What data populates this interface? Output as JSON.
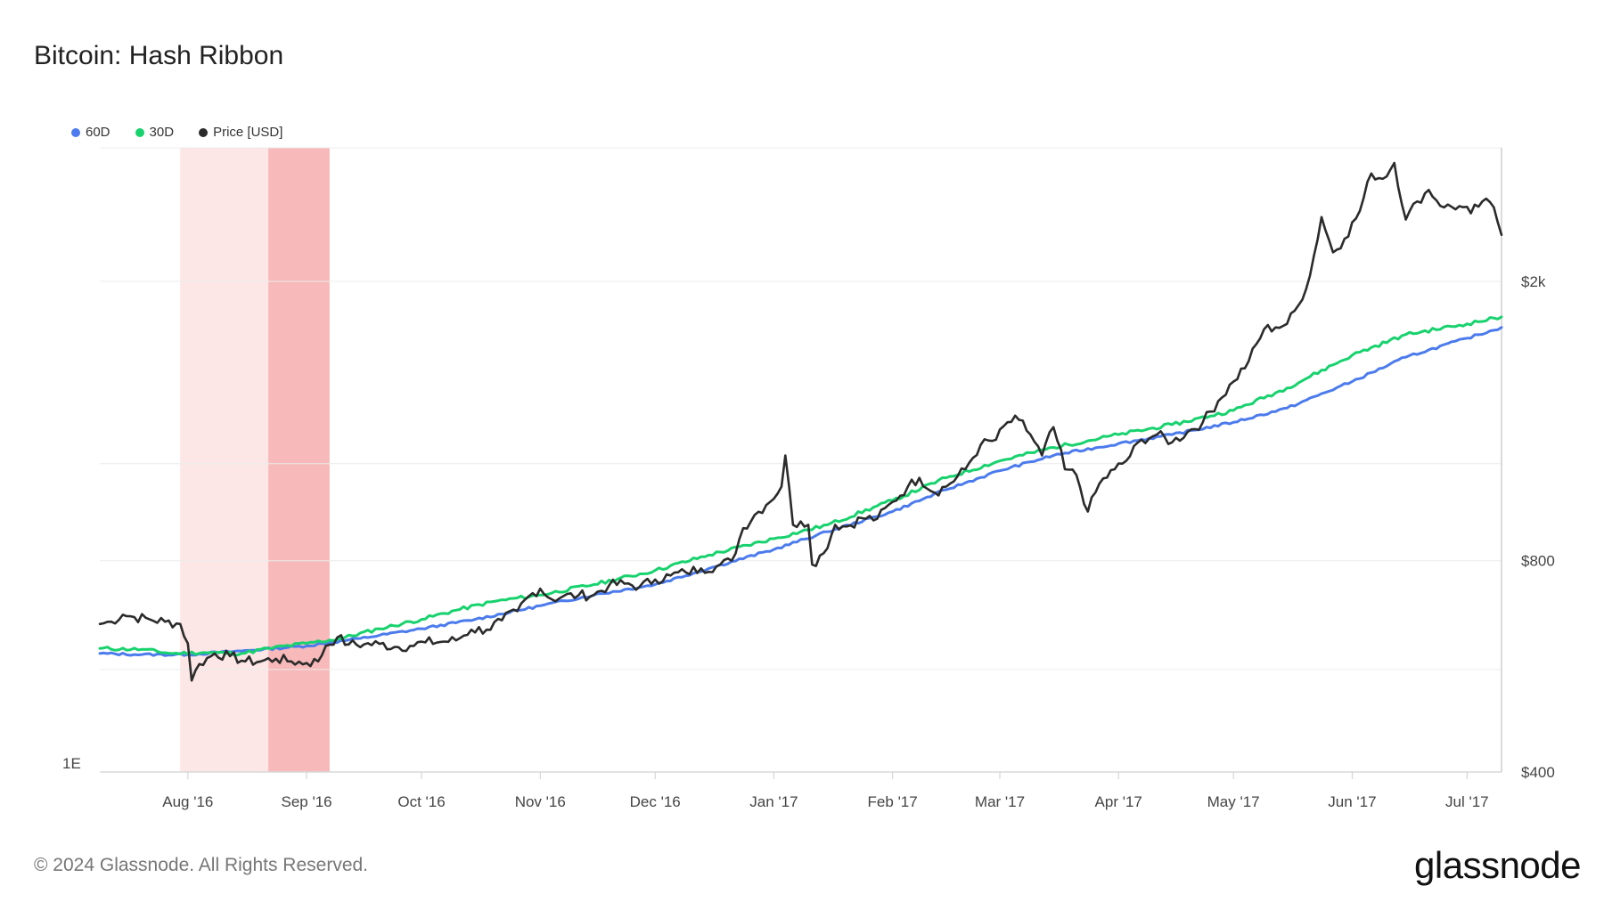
{
  "title": "Bitcoin: Hash Ribbon",
  "legend": [
    {
      "label": "60D",
      "color": "#4b7bec"
    },
    {
      "label": "30D",
      "color": "#18d26e"
    },
    {
      "label": "Price [USD]",
      "color": "#2b2b2b"
    }
  ],
  "footer": "© 2024 Glassnode. All Rights Reserved.",
  "brand": "glassnode",
  "chart_data": {
    "type": "line",
    "title": "Bitcoin: Hash Ribbon",
    "left_axis_label": "1E",
    "x_ticks": [
      "Aug '16",
      "Sep '16",
      "Oct '16",
      "Nov '16",
      "Dec '16",
      "Jan '17",
      "Feb '17",
      "Mar '17",
      "Apr '17",
      "May '17",
      "Jun '17",
      "Jul '17"
    ],
    "x_tick_dates": [
      "2016-08-01",
      "2016-09-01",
      "2016-10-01",
      "2016-11-01",
      "2016-12-01",
      "2017-01-01",
      "2017-02-01",
      "2017-03-01",
      "2017-04-01",
      "2017-05-01",
      "2017-06-01",
      "2017-07-01"
    ],
    "x_range": [
      "2016-07-09",
      "2017-07-10"
    ],
    "price_axis": {
      "scale": "log",
      "ticks": [
        400,
        800,
        2000
      ],
      "tick_labels": [
        "$400",
        "$800",
        "$2k"
      ],
      "range": [
        400,
        3100
      ]
    },
    "bands": [
      {
        "start": "2016-07-30",
        "end": "2016-08-22",
        "color": "#fde6e6"
      },
      {
        "start": "2016-08-22",
        "end": "2016-09-07",
        "color": "#f7b9b9"
      }
    ],
    "series": [
      {
        "name": "Price [USD]",
        "color": "#2b2b2b",
        "points": [
          [
            "2016-07-09",
            650
          ],
          [
            "2016-07-12",
            655
          ],
          [
            "2016-07-15",
            670
          ],
          [
            "2016-07-18",
            665
          ],
          [
            "2016-07-22",
            660
          ],
          [
            "2016-07-26",
            655
          ],
          [
            "2016-07-30",
            650
          ],
          [
            "2016-08-01",
            610
          ],
          [
            "2016-08-02",
            540
          ],
          [
            "2016-08-04",
            570
          ],
          [
            "2016-08-08",
            590
          ],
          [
            "2016-08-12",
            585
          ],
          [
            "2016-08-16",
            575
          ],
          [
            "2016-08-20",
            575
          ],
          [
            "2016-08-24",
            580
          ],
          [
            "2016-08-28",
            575
          ],
          [
            "2016-09-01",
            572
          ],
          [
            "2016-09-04",
            575
          ],
          [
            "2016-09-06",
            605
          ],
          [
            "2016-09-09",
            622
          ],
          [
            "2016-09-12",
            608
          ],
          [
            "2016-09-16",
            608
          ],
          [
            "2016-09-20",
            609
          ],
          [
            "2016-09-24",
            603
          ],
          [
            "2016-09-28",
            605
          ],
          [
            "2016-10-02",
            612
          ],
          [
            "2016-10-06",
            613
          ],
          [
            "2016-10-10",
            616
          ],
          [
            "2016-10-14",
            638
          ],
          [
            "2016-10-18",
            638
          ],
          [
            "2016-10-22",
            658
          ],
          [
            "2016-10-26",
            678
          ],
          [
            "2016-10-29",
            712
          ],
          [
            "2016-11-01",
            730
          ],
          [
            "2016-11-04",
            705
          ],
          [
            "2016-11-07",
            712
          ],
          [
            "2016-11-11",
            714
          ],
          [
            "2016-11-15",
            715
          ],
          [
            "2016-11-19",
            738
          ],
          [
            "2016-11-23",
            742
          ],
          [
            "2016-11-27",
            735
          ],
          [
            "2016-12-01",
            752
          ],
          [
            "2016-12-05",
            762
          ],
          [
            "2016-12-09",
            770
          ],
          [
            "2016-12-13",
            780
          ],
          [
            "2016-12-17",
            785
          ],
          [
            "2016-12-21",
            800
          ],
          [
            "2016-12-24",
            890
          ],
          [
            "2016-12-27",
            930
          ],
          [
            "2016-12-30",
            960
          ],
          [
            "2017-01-03",
            1020
          ],
          [
            "2017-01-04",
            1130
          ],
          [
            "2017-01-06",
            900
          ],
          [
            "2017-01-08",
            910
          ],
          [
            "2017-01-10",
            900
          ],
          [
            "2017-01-11",
            790
          ],
          [
            "2017-01-14",
            820
          ],
          [
            "2017-01-17",
            900
          ],
          [
            "2017-01-20",
            895
          ],
          [
            "2017-01-24",
            920
          ],
          [
            "2017-01-28",
            918
          ],
          [
            "2017-02-01",
            970
          ],
          [
            "2017-02-05",
            1020
          ],
          [
            "2017-02-08",
            1050
          ],
          [
            "2017-02-12",
            1000
          ],
          [
            "2017-02-16",
            1030
          ],
          [
            "2017-02-20",
            1080
          ],
          [
            "2017-02-24",
            1170
          ],
          [
            "2017-02-28",
            1190
          ],
          [
            "2017-03-03",
            1260
          ],
          [
            "2017-03-06",
            1270
          ],
          [
            "2017-03-09",
            1210
          ],
          [
            "2017-03-12",
            1130
          ],
          [
            "2017-03-15",
            1240
          ],
          [
            "2017-03-18",
            1080
          ],
          [
            "2017-03-21",
            1060
          ],
          [
            "2017-03-24",
            940
          ],
          [
            "2017-03-27",
            1030
          ],
          [
            "2017-03-31",
            1080
          ],
          [
            "2017-04-03",
            1110
          ],
          [
            "2017-04-07",
            1190
          ],
          [
            "2017-04-11",
            1210
          ],
          [
            "2017-04-15",
            1180
          ],
          [
            "2017-04-19",
            1220
          ],
          [
            "2017-04-23",
            1260
          ],
          [
            "2017-04-27",
            1350
          ],
          [
            "2017-05-01",
            1440
          ],
          [
            "2017-05-05",
            1540
          ],
          [
            "2017-05-09",
            1710
          ],
          [
            "2017-05-12",
            1720
          ],
          [
            "2017-05-15",
            1740
          ],
          [
            "2017-05-18",
            1850
          ],
          [
            "2017-05-21",
            2040
          ],
          [
            "2017-05-24",
            2470
          ],
          [
            "2017-05-27",
            2200
          ],
          [
            "2017-05-30",
            2300
          ],
          [
            "2017-06-03",
            2520
          ],
          [
            "2017-06-06",
            2850
          ],
          [
            "2017-06-09",
            2800
          ],
          [
            "2017-06-12",
            2950
          ],
          [
            "2017-06-15",
            2450
          ],
          [
            "2017-06-18",
            2600
          ],
          [
            "2017-06-21",
            2700
          ],
          [
            "2017-06-25",
            2550
          ],
          [
            "2017-06-29",
            2560
          ],
          [
            "2017-07-02",
            2500
          ],
          [
            "2017-07-05",
            2600
          ],
          [
            "2017-07-08",
            2550
          ],
          [
            "2017-07-10",
            2330
          ]
        ]
      },
      {
        "name": "30D",
        "color": "#18d26e",
        "points": [
          [
            "2016-07-09",
            600
          ],
          [
            "2016-07-20",
            598
          ],
          [
            "2016-07-28",
            590
          ],
          [
            "2016-08-05",
            592
          ],
          [
            "2016-08-15",
            590
          ],
          [
            "2016-08-22",
            600
          ],
          [
            "2016-09-01",
            610
          ],
          [
            "2016-09-10",
            620
          ],
          [
            "2016-09-20",
            640
          ],
          [
            "2016-10-01",
            660
          ],
          [
            "2016-10-10",
            680
          ],
          [
            "2016-10-20",
            700
          ],
          [
            "2016-11-01",
            715
          ],
          [
            "2016-11-15",
            740
          ],
          [
            "2016-12-01",
            775
          ],
          [
            "2016-12-15",
            815
          ],
          [
            "2017-01-01",
            860
          ],
          [
            "2017-01-15",
            900
          ],
          [
            "2017-02-01",
            975
          ],
          [
            "2017-02-15",
            1050
          ],
          [
            "2017-03-01",
            1110
          ],
          [
            "2017-03-15",
            1160
          ],
          [
            "2017-04-01",
            1210
          ],
          [
            "2017-04-15",
            1250
          ],
          [
            "2017-05-01",
            1310
          ],
          [
            "2017-05-15",
            1410
          ],
          [
            "2017-06-01",
            1570
          ],
          [
            "2017-06-15",
            1680
          ],
          [
            "2017-07-01",
            1740
          ],
          [
            "2017-07-10",
            1780
          ]
        ]
      },
      {
        "name": "60D",
        "color": "#4b7bec",
        "points": [
          [
            "2016-07-09",
            590
          ],
          [
            "2016-07-20",
            588
          ],
          [
            "2016-08-01",
            588
          ],
          [
            "2016-08-15",
            595
          ],
          [
            "2016-09-01",
            605
          ],
          [
            "2016-09-15",
            620
          ],
          [
            "2016-10-01",
            640
          ],
          [
            "2016-10-15",
            660
          ],
          [
            "2016-11-01",
            690
          ],
          [
            "2016-11-15",
            715
          ],
          [
            "2016-12-01",
            740
          ],
          [
            "2016-12-15",
            780
          ],
          [
            "2017-01-01",
            830
          ],
          [
            "2017-01-15",
            880
          ],
          [
            "2017-02-01",
            940
          ],
          [
            "2017-02-15",
            1010
          ],
          [
            "2017-03-01",
            1075
          ],
          [
            "2017-03-15",
            1130
          ],
          [
            "2017-04-01",
            1175
          ],
          [
            "2017-04-15",
            1210
          ],
          [
            "2017-05-01",
            1260
          ],
          [
            "2017-05-15",
            1320
          ],
          [
            "2017-06-01",
            1440
          ],
          [
            "2017-06-15",
            1560
          ],
          [
            "2017-07-01",
            1660
          ],
          [
            "2017-07-10",
            1720
          ]
        ]
      }
    ]
  }
}
